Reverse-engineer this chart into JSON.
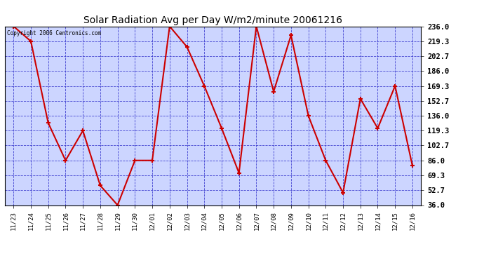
{
  "title": "Solar Radiation Avg per Day W/m2/minute 20061216",
  "copyright": "Copyright 2006 Centronics.com",
  "dates": [
    "11/23",
    "11/24",
    "11/25",
    "11/26",
    "11/27",
    "11/28",
    "11/29",
    "11/30",
    "12/01",
    "12/02",
    "12/03",
    "12/04",
    "12/05",
    "12/06",
    "12/07",
    "12/08",
    "12/09",
    "12/10",
    "12/11",
    "12/12",
    "12/13",
    "12/14",
    "12/15",
    "12/16"
  ],
  "values": [
    236.0,
    219.3,
    128.0,
    86.0,
    119.3,
    58.0,
    36.0,
    86.0,
    86.0,
    236.0,
    213.0,
    169.3,
    122.0,
    72.0,
    236.0,
    163.0,
    226.0,
    136.0,
    86.0,
    50.0,
    155.0,
    122.0,
    169.3,
    80.0
  ],
  "line_color": "#cc0000",
  "marker_color": "#cc0000",
  "fig_bg_color": "#ffffff",
  "plot_bg_color": "#ccd5ff",
  "grid_color": "#3333cc",
  "title_color": "#000000",
  "tick_color": "#000000",
  "border_color": "#000000",
  "ylim": [
    36.0,
    236.0
  ],
  "yticks": [
    36.0,
    52.7,
    69.3,
    86.0,
    102.7,
    119.3,
    136.0,
    152.7,
    169.3,
    186.0,
    202.7,
    219.3,
    236.0
  ]
}
